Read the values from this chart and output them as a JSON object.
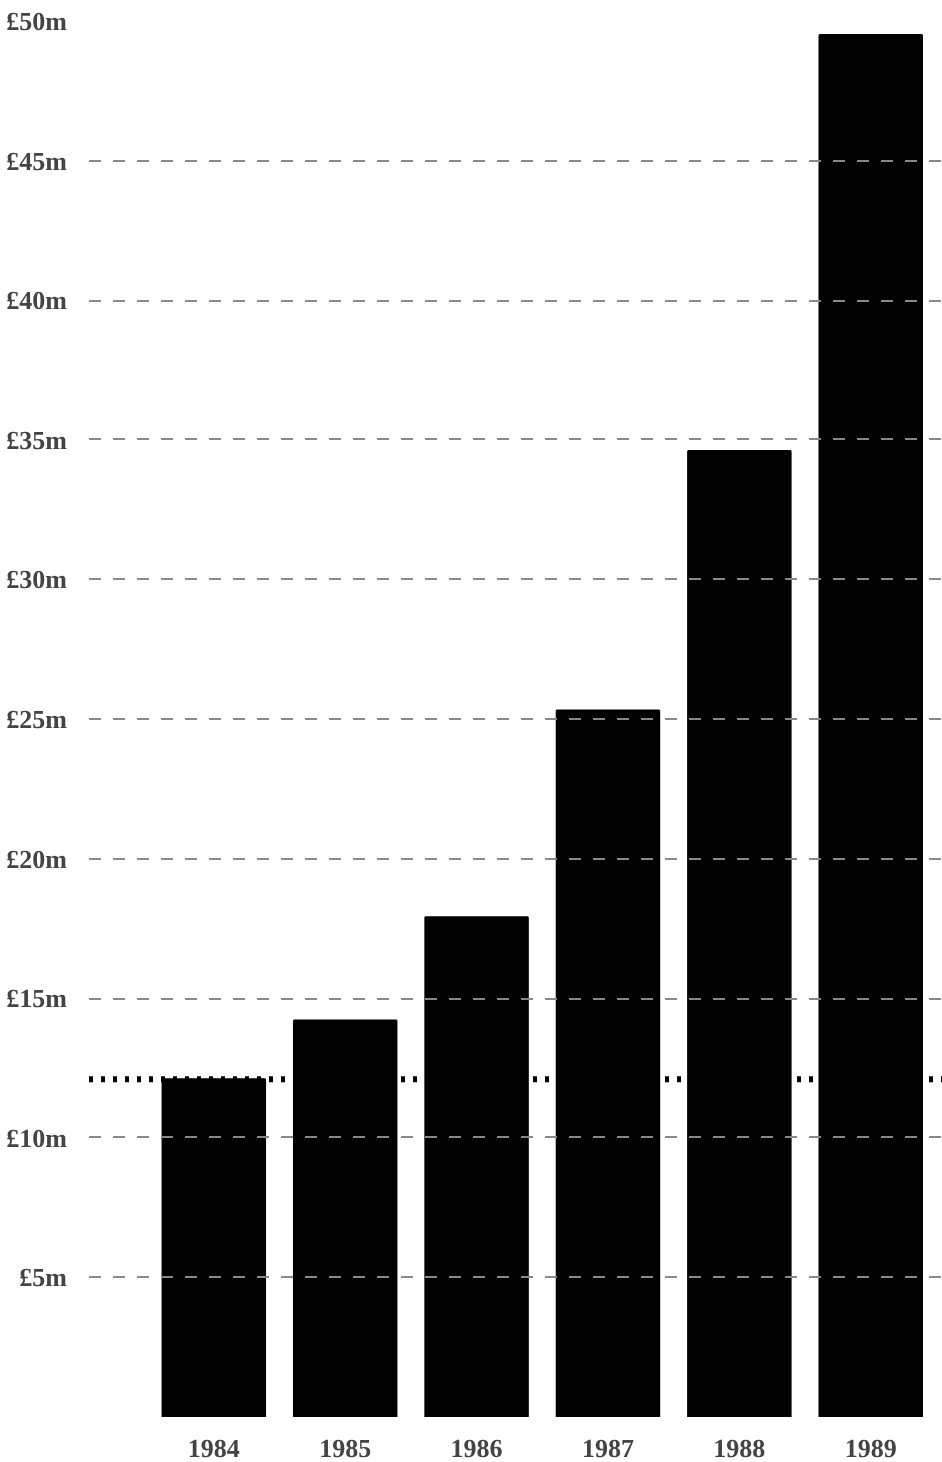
{
  "chart_data": {
    "type": "bar",
    "categories": [
      "1984",
      "1985",
      "1986",
      "1987",
      "1988",
      "1989"
    ],
    "values": [
      12.1,
      14.2,
      17.9,
      25.3,
      34.6,
      49.5
    ],
    "color": "#000000",
    "ylim": [
      0,
      50
    ],
    "yticks": [
      {
        "value": 5,
        "label": "£5m"
      },
      {
        "value": 10,
        "label": "£10m"
      },
      {
        "value": 15,
        "label": "£15m"
      },
      {
        "value": 20,
        "label": "£20m"
      },
      {
        "value": 25,
        "label": "£25m"
      },
      {
        "value": 30,
        "label": "£30m"
      },
      {
        "value": 35,
        "label": "£35m"
      },
      {
        "value": 40,
        "label": "£40m"
      },
      {
        "value": 45,
        "label": "£45m"
      },
      {
        "value": 50,
        "label": "£50m"
      }
    ],
    "grid": "y",
    "line_style": "dashed",
    "ref_lines": [
      {
        "axis": "y",
        "value": 12.1,
        "line_style": "dotted"
      }
    ]
  }
}
